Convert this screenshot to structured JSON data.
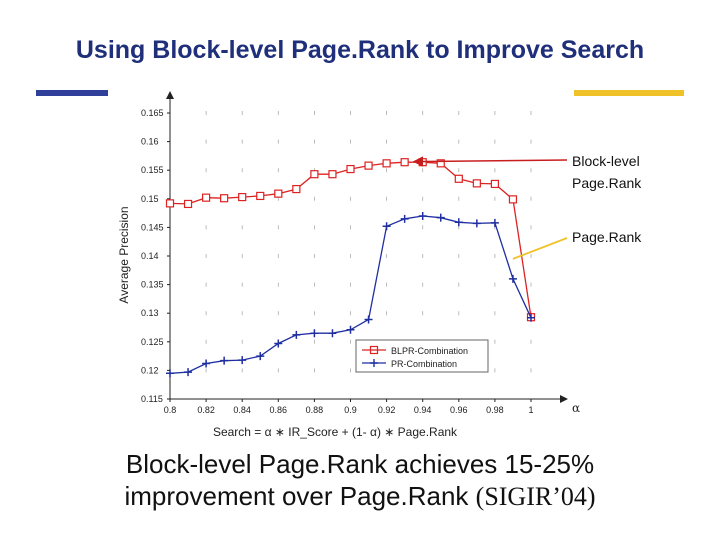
{
  "slide": {
    "title": "Using Block-level Page.Rank to Improve Search",
    "accent_left": "#2f3f9a",
    "accent_right": "#f0c22a",
    "caption_line1": "Block-level Page.Rank achieves 15-25%",
    "caption_line2": "improvement over Page.Rank",
    "caption_tail": "(SIGIR’04)"
  },
  "chart_data": {
    "type": "line",
    "ylabel": "Average Precision",
    "xlabel": "α",
    "formula": "Search = α ∗ IR_Score + (1- α) ∗ Page.Rank",
    "xlim": [
      0.8,
      1.0
    ],
    "ylim": [
      0.115,
      0.165
    ],
    "x_ticks": [
      0.8,
      0.82,
      0.84,
      0.86,
      0.88,
      0.9,
      0.92,
      0.94,
      0.96,
      0.98,
      1
    ],
    "x_tick_labels": [
      "0.8",
      "0.82",
      "0.84",
      "0.86",
      "0.88",
      "0.9",
      "0.92",
      "0.94",
      "0.96",
      "0.98",
      "1"
    ],
    "y_ticks": [
      0.115,
      0.12,
      0.125,
      0.13,
      0.135,
      0.14,
      0.145,
      0.15,
      0.155,
      0.16,
      0.165
    ],
    "y_tick_labels": [
      "0.115",
      "0.12",
      "0.125",
      "0.13",
      "0.135",
      "0.14",
      "0.145",
      "0.15",
      "0.155",
      "0.16",
      "0.165"
    ],
    "legend_position": "lower-right",
    "series": [
      {
        "name": "BLPR-Combination",
        "color": "#dd2222",
        "marker": "square",
        "x": [
          0.8,
          0.81,
          0.82,
          0.83,
          0.84,
          0.85,
          0.86,
          0.87,
          0.88,
          0.89,
          0.9,
          0.91,
          0.92,
          0.93,
          0.94,
          0.95,
          0.96,
          0.97,
          0.98,
          0.99,
          1.0
        ],
        "y": [
          0.1492,
          0.1491,
          0.1502,
          0.1501,
          0.1503,
          0.1505,
          0.1509,
          0.1517,
          0.1543,
          0.1543,
          0.1552,
          0.1558,
          0.1562,
          0.1564,
          0.1564,
          0.1562,
          0.1535,
          0.1527,
          0.1526,
          0.1499,
          0.1293
        ]
      },
      {
        "name": "PR-Combination",
        "color": "#1f2fa0",
        "marker": "plus",
        "x": [
          0.8,
          0.81,
          0.82,
          0.83,
          0.84,
          0.85,
          0.86,
          0.87,
          0.88,
          0.89,
          0.9,
          0.91,
          0.92,
          0.93,
          0.94,
          0.95,
          0.96,
          0.97,
          0.98,
          0.99,
          1.0
        ],
        "y": [
          0.1195,
          0.1197,
          0.1212,
          0.1217,
          0.1218,
          0.1225,
          0.1247,
          0.1262,
          0.1265,
          0.1265,
          0.1271,
          0.1289,
          0.1452,
          0.1465,
          0.147,
          0.1467,
          0.1459,
          0.1457,
          0.1458,
          0.136,
          0.1292
        ]
      }
    ],
    "annotations": [
      {
        "text_line1": "Block-level",
        "text_line2": "Page.Rank",
        "points_to_series": 0,
        "x": 0.935,
        "y": 0.1565,
        "color": "#c81e1e"
      },
      {
        "text_line1": "Page.Rank",
        "text_line2": "",
        "points_to_series": 1,
        "x": 0.99,
        "y": 0.1395,
        "color": "#f0c22a"
      }
    ]
  }
}
